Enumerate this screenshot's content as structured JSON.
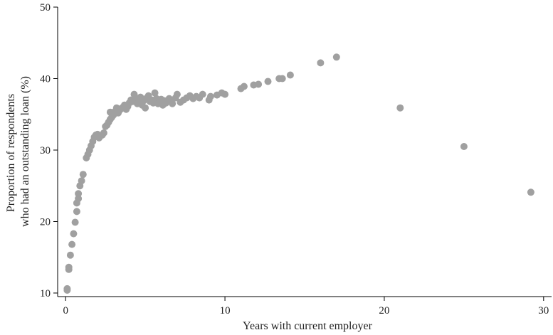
{
  "chart_data": {
    "type": "scatter",
    "title": "",
    "xlabel": "Years with current employer",
    "ylabel": [
      "Proportion of respondents",
      "who had an outstanding loan (%)"
    ],
    "xlim": [
      -0.5,
      30.5
    ],
    "ylim": [
      9.5,
      50
    ],
    "xticks": [
      0,
      10,
      20,
      30
    ],
    "yticks": [
      10,
      20,
      30,
      40,
      50
    ],
    "grid": false,
    "legend": "none",
    "marker_color": "#a0a0a0",
    "series": [
      {
        "points": [
          [
            0.1,
            10.6
          ],
          [
            0.1,
            10.4
          ],
          [
            0.2,
            13.6
          ],
          [
            0.2,
            13.3
          ],
          [
            0.3,
            15.3
          ],
          [
            0.4,
            16.8
          ],
          [
            0.5,
            18.3
          ],
          [
            0.6,
            19.9
          ],
          [
            0.7,
            21.4
          ],
          [
            0.7,
            22.6
          ],
          [
            0.8,
            23.2
          ],
          [
            0.8,
            23.9
          ],
          [
            0.9,
            25.0
          ],
          [
            1.0,
            25.7
          ],
          [
            1.1,
            26.6
          ],
          [
            1.3,
            28.9
          ],
          [
            1.4,
            29.4
          ],
          [
            1.5,
            30.0
          ],
          [
            1.6,
            30.6
          ],
          [
            1.7,
            31.2
          ],
          [
            1.8,
            31.8
          ],
          [
            1.9,
            32.1
          ],
          [
            2.0,
            32.2
          ],
          [
            2.1,
            31.7
          ],
          [
            2.2,
            32.0
          ],
          [
            2.3,
            32.1
          ],
          [
            2.4,
            32.4
          ],
          [
            2.5,
            33.3
          ],
          [
            2.6,
            33.5
          ],
          [
            2.7,
            33.9
          ],
          [
            2.8,
            34.3
          ],
          [
            2.8,
            35.3
          ],
          [
            2.9,
            34.6
          ],
          [
            3.0,
            34.9
          ],
          [
            3.1,
            35.4
          ],
          [
            3.2,
            35.9
          ],
          [
            3.3,
            35.2
          ],
          [
            3.4,
            35.6
          ],
          [
            3.5,
            35.8
          ],
          [
            3.6,
            36.0
          ],
          [
            3.7,
            36.3
          ],
          [
            3.8,
            35.7
          ],
          [
            3.9,
            36.1
          ],
          [
            4.0,
            36.6
          ],
          [
            4.1,
            37.0
          ],
          [
            4.2,
            36.8
          ],
          [
            4.3,
            37.8
          ],
          [
            4.4,
            37.2
          ],
          [
            4.5,
            36.5
          ],
          [
            4.6,
            37.1
          ],
          [
            4.7,
            37.4
          ],
          [
            4.8,
            36.3
          ],
          [
            4.9,
            36.9
          ],
          [
            5.0,
            35.9
          ],
          [
            5.1,
            37.3
          ],
          [
            5.2,
            37.6
          ],
          [
            5.3,
            36.8
          ],
          [
            5.4,
            37.0
          ],
          [
            5.5,
            36.6
          ],
          [
            5.6,
            38.0
          ],
          [
            5.7,
            37.2
          ],
          [
            5.8,
            36.5
          ],
          [
            5.9,
            36.8
          ],
          [
            6.0,
            37.1
          ],
          [
            6.1,
            36.3
          ],
          [
            6.2,
            36.9
          ],
          [
            6.3,
            36.6
          ],
          [
            6.5,
            37.2
          ],
          [
            6.6,
            36.8
          ],
          [
            6.7,
            36.5
          ],
          [
            6.9,
            37.3
          ],
          [
            7.0,
            37.8
          ],
          [
            7.2,
            36.7
          ],
          [
            7.4,
            37.0
          ],
          [
            7.6,
            37.3
          ],
          [
            7.8,
            37.6
          ],
          [
            8.0,
            37.2
          ],
          [
            8.2,
            37.5
          ],
          [
            8.4,
            37.3
          ],
          [
            8.6,
            37.8
          ],
          [
            9.0,
            37.0
          ],
          [
            9.1,
            37.5
          ],
          [
            9.5,
            37.7
          ],
          [
            9.8,
            38.0
          ],
          [
            10.0,
            37.8
          ],
          [
            11.0,
            38.6
          ],
          [
            11.2,
            38.9
          ],
          [
            11.8,
            39.1
          ],
          [
            12.1,
            39.2
          ],
          [
            12.7,
            39.6
          ],
          [
            13.4,
            40.0
          ],
          [
            13.6,
            40.0
          ],
          [
            14.1,
            40.5
          ],
          [
            16.0,
            42.2
          ],
          [
            17.0,
            43.0
          ],
          [
            21.0,
            35.9
          ],
          [
            25.0,
            30.5
          ],
          [
            29.2,
            24.1
          ]
        ]
      }
    ]
  }
}
